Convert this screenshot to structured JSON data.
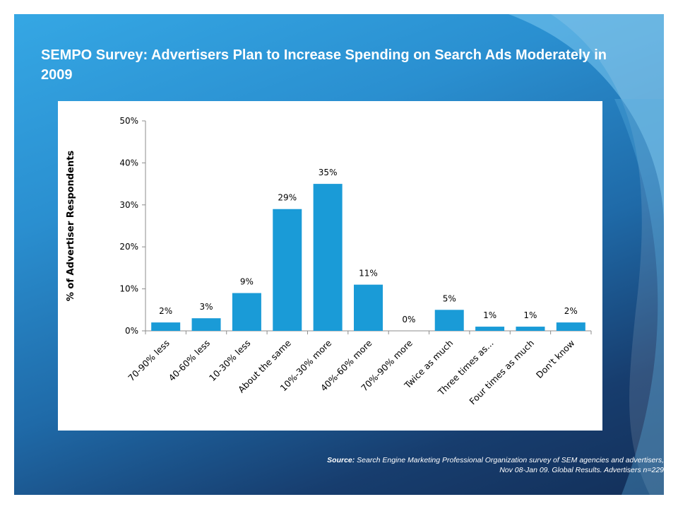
{
  "slide": {
    "title": "SEMPO Survey: Advertisers Plan to Increase Spending on Search Ads Moderately in 2009",
    "source_label": "Source:",
    "source_line1": " Search Engine Marketing Professional Organization survey of SEM agencies and advertisers,",
    "source_line2": "Nov 08-Jan 09. Global Results. Advertisers n=229"
  },
  "colors": {
    "bar": "#1a9bd7",
    "axis": "#8c8c8c",
    "text": "#000000"
  },
  "chart_data": {
    "type": "bar",
    "title": "",
    "xlabel": "",
    "ylabel": "% of Advertiser Respondents",
    "ylim": [
      0,
      50
    ],
    "yticks": [
      "0%",
      "10%",
      "20%",
      "30%",
      "40%",
      "50%"
    ],
    "grid": false,
    "categories": [
      "70-90% less",
      "40-60% less",
      "10-30% less",
      "About the same",
      "10%-30% more",
      "40%-60% more",
      "70%-90% more",
      "Twice as much",
      "Three times as...",
      "Four times as much",
      "Don't know"
    ],
    "values": [
      2,
      3,
      9,
      29,
      35,
      11,
      0,
      5,
      1,
      1,
      2
    ],
    "data_labels": [
      "2%",
      "3%",
      "9%",
      "29%",
      "35%",
      "11%",
      "0%",
      "5%",
      "1%",
      "1%",
      "2%"
    ]
  }
}
